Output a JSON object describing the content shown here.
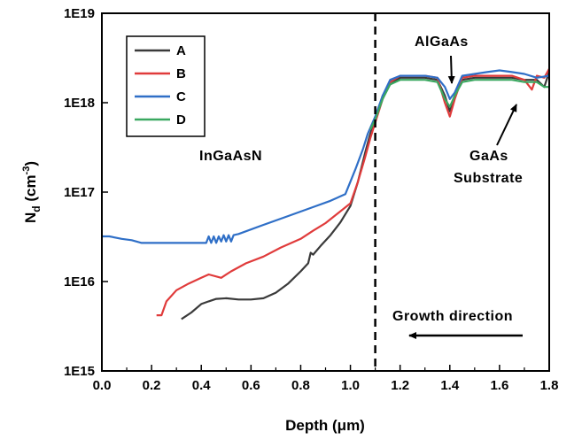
{
  "chart_data": {
    "type": "line",
    "xlabel": "Depth (μm)",
    "ylabel_main": "N",
    "ylabel_sub": "d",
    "ylabel_unit_open": " (cm",
    "ylabel_unit_sup": "-3",
    "ylabel_unit_close": ")",
    "xlim": [
      0.0,
      1.8
    ],
    "ylim": [
      1000000000000000.0,
      1e+19
    ],
    "yscale": "log",
    "x_ticks": [
      0.0,
      0.2,
      0.4,
      0.6,
      0.8,
      1.0,
      1.2,
      1.4,
      1.6,
      1.8
    ],
    "x_tick_labels": [
      "0.0",
      "0.2",
      "0.4",
      "0.6",
      "0.8",
      "1.0",
      "1.2",
      "1.4",
      "1.6",
      "1.8"
    ],
    "y_ticks": [
      1000000000000000.0,
      1e+16,
      1e+17,
      1e+18,
      1e+19
    ],
    "y_tick_labels": [
      "1E15",
      "1E16",
      "1E17",
      "1E18",
      "1E19"
    ],
    "grid": false,
    "legend_position": "top-left",
    "vline_x": 1.1,
    "annotations": {
      "ingaasn": "InGaAsN",
      "algaas": "AlGaAs",
      "gaas": "GaAs",
      "substrate": "Substrate",
      "growth": "Growth direction"
    },
    "series": [
      {
        "name": "A",
        "color": "#3a3a3a",
        "x": [
          0.32,
          0.36,
          0.4,
          0.43,
          0.46,
          0.5,
          0.55,
          0.6,
          0.65,
          0.7,
          0.75,
          0.8,
          0.83,
          0.84,
          0.85,
          0.88,
          0.92,
          0.96,
          1.0,
          1.03,
          1.06,
          1.08,
          1.1,
          1.13,
          1.16,
          1.2,
          1.25,
          1.3,
          1.35,
          1.38,
          1.4,
          1.42,
          1.45,
          1.5,
          1.55,
          1.6,
          1.65,
          1.7,
          1.75,
          1.78,
          1.8
        ],
        "y": [
          3800000000000000.0,
          4500000000000000.0,
          5600000000000000.0,
          6000000000000000.0,
          6400000000000000.0,
          6500000000000000.0,
          6300000000000000.0,
          6300000000000000.0,
          6500000000000000.0,
          7500000000000000.0,
          9500000000000000.0,
          1.3e+16,
          1.6e+16,
          2.1e+16,
          2e+16,
          2.5e+16,
          3.3e+16,
          4.6e+16,
          7e+16,
          1.3e+17,
          2.8e+17,
          4.5e+17,
          6.5e+17,
          1.2e+18,
          1.6e+18,
          1.9e+18,
          1.9e+18,
          1.9e+18,
          1.8e+18,
          1.2e+18,
          8e+17,
          1.2e+18,
          1.8e+18,
          1.9e+18,
          1.9e+18,
          1.9e+18,
          1.9e+18,
          1.8e+18,
          1.8e+18,
          1.5e+18,
          2.2e+18
        ]
      },
      {
        "name": "B",
        "color": "#e03b3b",
        "x": [
          0.22,
          0.24,
          0.26,
          0.3,
          0.35,
          0.4,
          0.43,
          0.48,
          0.52,
          0.58,
          0.65,
          0.72,
          0.8,
          0.85,
          0.9,
          0.95,
          1.0,
          1.03,
          1.06,
          1.08,
          1.1,
          1.13,
          1.16,
          1.2,
          1.25,
          1.3,
          1.35,
          1.38,
          1.4,
          1.42,
          1.45,
          1.5,
          1.55,
          1.6,
          1.65,
          1.7,
          1.73,
          1.75,
          1.78,
          1.8
        ],
        "y": [
          4200000000000000.0,
          4200000000000000.0,
          6000000000000000.0,
          8000000000000000.0,
          9500000000000000.0,
          1.1e+16,
          1.2e+16,
          1.1e+16,
          1.3e+16,
          1.6e+16,
          1.9e+16,
          2.4e+16,
          3e+16,
          3.7e+16,
          4.5e+16,
          5.8e+16,
          7.5e+16,
          1.3e+17,
          2.5e+17,
          4e+17,
          6e+17,
          1.1e+18,
          1.7e+18,
          2e+18,
          2e+18,
          2e+18,
          1.9e+18,
          1e+18,
          7e+17,
          1.1e+18,
          1.9e+18,
          2e+18,
          2e+18,
          2e+18,
          2e+18,
          1.8e+18,
          1.4e+18,
          2e+18,
          1.9e+18,
          2.4e+18
        ]
      },
      {
        "name": "C",
        "color": "#2f6fc7",
        "x": [
          0.0,
          0.03,
          0.08,
          0.12,
          0.16,
          0.2,
          0.25,
          0.3,
          0.35,
          0.4,
          0.42,
          0.43,
          0.44,
          0.45,
          0.46,
          0.47,
          0.48,
          0.49,
          0.5,
          0.51,
          0.52,
          0.53,
          0.55,
          0.65,
          0.75,
          0.85,
          0.92,
          0.98,
          1.02,
          1.05,
          1.07,
          1.1,
          1.13,
          1.16,
          1.2,
          1.25,
          1.3,
          1.35,
          1.38,
          1.4,
          1.42,
          1.45,
          1.5,
          1.55,
          1.6,
          1.65,
          1.7,
          1.75,
          1.8
        ],
        "y": [
          3.2e+16,
          3.2e+16,
          3e+16,
          2.9e+16,
          2.7e+16,
          2.7e+16,
          2.7e+16,
          2.7e+16,
          2.7e+16,
          2.7e+16,
          2.7e+16,
          3.2e+16,
          2.7e+16,
          3.2e+16,
          2.7e+16,
          3.2e+16,
          2.8e+16,
          3.3e+16,
          2.8e+16,
          3.3e+16,
          2.8e+16,
          3.3e+16,
          3.4e+16,
          4.3e+16,
          5.4e+16,
          6.8e+16,
          8e+16,
          9.5e+16,
          1.8e+17,
          3e+17,
          4.5e+17,
          7e+17,
          1.2e+18,
          1.8e+18,
          2e+18,
          2e+18,
          2e+18,
          1.9e+18,
          1.5e+18,
          1.1e+18,
          1.3e+18,
          2e+18,
          2.1e+18,
          2.2e+18,
          2.3e+18,
          2.2e+18,
          2.1e+18,
          1.9e+18,
          2e+18
        ]
      },
      {
        "name": "D",
        "color": "#3aa860",
        "x": [
          1.08,
          1.1,
          1.13,
          1.16,
          1.2,
          1.25,
          1.3,
          1.35,
          1.38,
          1.4,
          1.42,
          1.45,
          1.5,
          1.55,
          1.6,
          1.65,
          1.7,
          1.75,
          1.78,
          1.8
        ],
        "y": [
          5e+17,
          6.5e+17,
          1.1e+18,
          1.6e+18,
          1.8e+18,
          1.8e+18,
          1.8e+18,
          1.7e+18,
          1.1e+18,
          9e+17,
          1.2e+18,
          1.7e+18,
          1.8e+18,
          1.8e+18,
          1.8e+18,
          1.8e+18,
          1.7e+18,
          1.7e+18,
          1.5e+18,
          1.5e+18
        ]
      }
    ]
  }
}
